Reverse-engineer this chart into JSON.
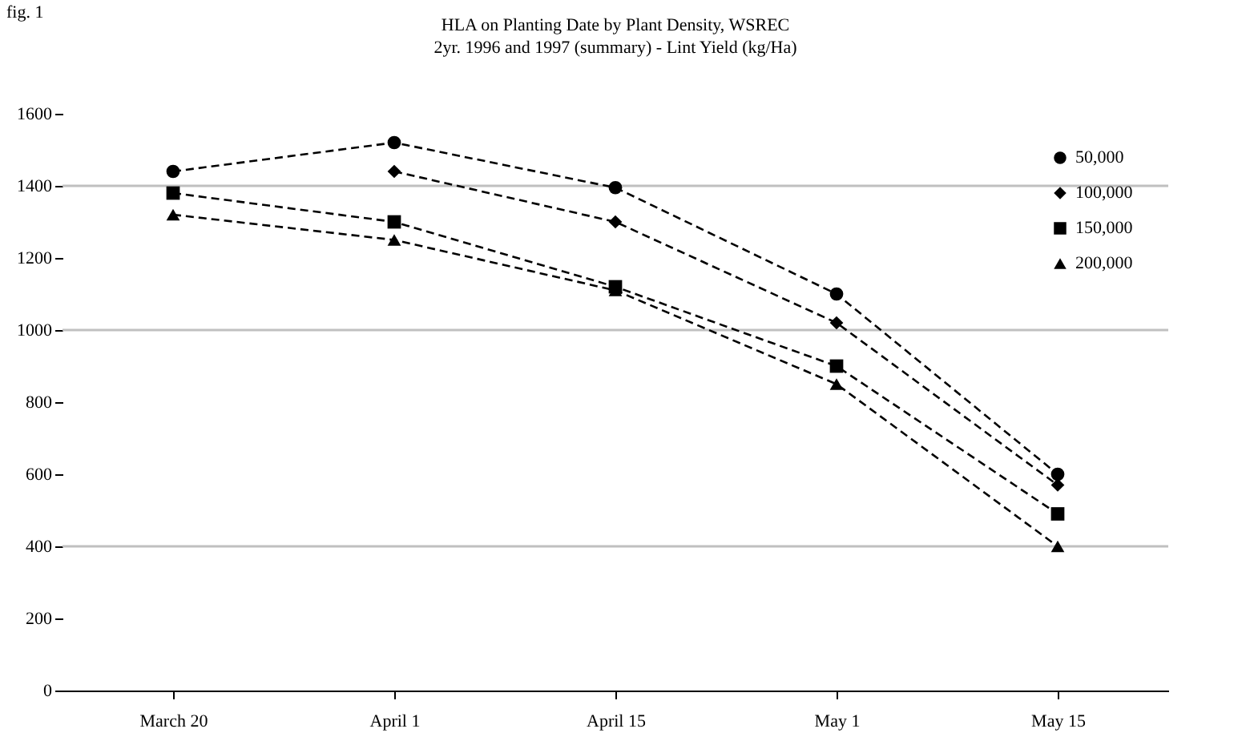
{
  "chart_data": {
    "type": "line",
    "title": "HLA on Planting Date by Plant Density, WSREC",
    "subtitle": "2yr. 1996 and 1997 (summary) - Lint Yield (kg/Ha)",
    "annotations": [
      "fig. 1"
    ],
    "categories": [
      "March 20",
      "April 1",
      "April 15",
      "May 1",
      "May 15"
    ],
    "series": [
      {
        "name": "50,000",
        "color": "#000000",
        "marker": "circle",
        "values": [
          1440,
          1520,
          1395,
          1100,
          600
        ]
      },
      {
        "name": "100,000",
        "color": "#000000",
        "marker": "diamond",
        "values": [
          null,
          1440,
          1300,
          1020,
          570
        ]
      },
      {
        "name": "150,000",
        "color": "#000000",
        "marker": "square",
        "values": [
          1380,
          1300,
          1120,
          900,
          490
        ]
      },
      {
        "name": "200,000",
        "color": "#000000",
        "marker": "triangle",
        "values": [
          1320,
          1250,
          1110,
          850,
          400
        ]
      }
    ],
    "ylim": [
      0,
      1600
    ],
    "yticks": [
      0,
      200,
      400,
      600,
      800,
      1000,
      1200,
      1400,
      1600
    ],
    "ref_lines": [
      {
        "axis": "y",
        "value": 400,
        "color": "#c0c0c0"
      },
      {
        "axis": "y",
        "value": 1000,
        "color": "#c0c0c0"
      },
      {
        "axis": "y",
        "value": 1400,
        "color": "#c0c0c0"
      }
    ],
    "line_style": "dashed",
    "legend": "top right"
  }
}
